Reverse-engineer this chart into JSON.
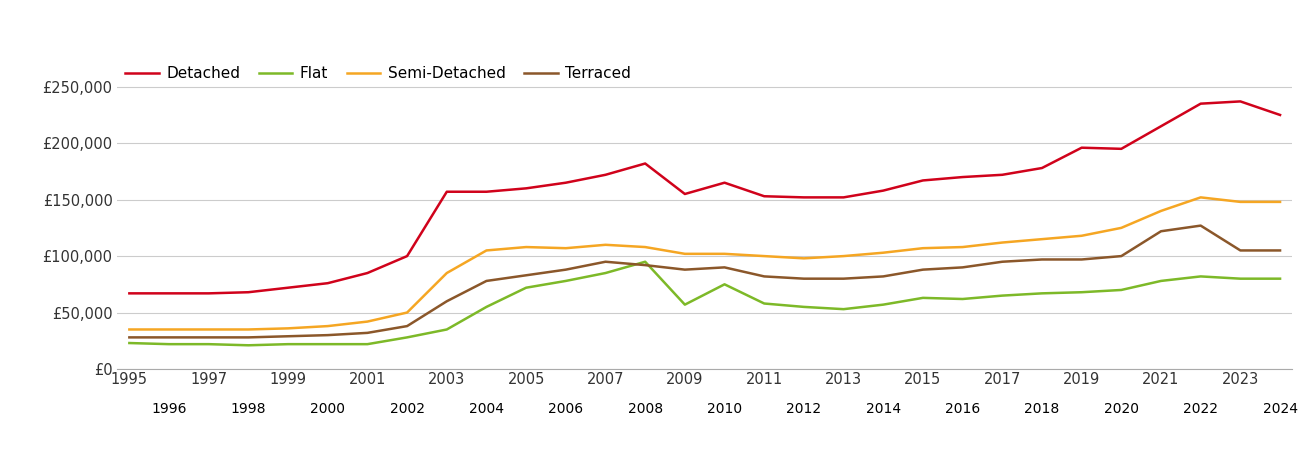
{
  "years": [
    1995,
    1996,
    1997,
    1998,
    1999,
    2000,
    2001,
    2002,
    2003,
    2004,
    2005,
    2006,
    2007,
    2008,
    2009,
    2010,
    2011,
    2012,
    2013,
    2014,
    2015,
    2016,
    2017,
    2018,
    2019,
    2020,
    2021,
    2022,
    2023,
    2024
  ],
  "detached": [
    67000,
    67000,
    67000,
    68000,
    72000,
    76000,
    85000,
    100000,
    157000,
    157000,
    160000,
    165000,
    172000,
    182000,
    155000,
    165000,
    153000,
    152000,
    152000,
    158000,
    167000,
    170000,
    172000,
    178000,
    196000,
    195000,
    215000,
    235000,
    237000,
    225000
  ],
  "flat": [
    23000,
    22000,
    22000,
    21000,
    22000,
    22000,
    22000,
    28000,
    35000,
    55000,
    72000,
    78000,
    85000,
    95000,
    57000,
    75000,
    58000,
    55000,
    53000,
    57000,
    63000,
    62000,
    65000,
    67000,
    68000,
    70000,
    78000,
    82000,
    80000,
    80000
  ],
  "semi_detached": [
    35000,
    35000,
    35000,
    35000,
    36000,
    38000,
    42000,
    50000,
    85000,
    105000,
    108000,
    107000,
    110000,
    108000,
    102000,
    102000,
    100000,
    98000,
    100000,
    103000,
    107000,
    108000,
    112000,
    115000,
    118000,
    125000,
    140000,
    152000,
    148000,
    148000
  ],
  "terraced": [
    28000,
    28000,
    28000,
    28000,
    29000,
    30000,
    32000,
    38000,
    60000,
    78000,
    83000,
    88000,
    95000,
    92000,
    88000,
    90000,
    82000,
    80000,
    80000,
    82000,
    88000,
    90000,
    95000,
    97000,
    97000,
    100000,
    122000,
    127000,
    105000,
    105000
  ],
  "colors": {
    "detached": "#d0021b",
    "flat": "#7db928",
    "semi_detached": "#f5a623",
    "terraced": "#8b572a"
  },
  "ylim": [
    0,
    275000
  ],
  "yticks": [
    0,
    50000,
    100000,
    150000,
    200000,
    250000
  ],
  "ytick_labels": [
    "£0",
    "£50,000",
    "£100,000",
    "£150,000",
    "£200,000",
    "£250,000"
  ],
  "background_color": "#ffffff",
  "grid_color": "#cccccc",
  "line_width": 1.8,
  "legend_labels": [
    "Detached",
    "Flat",
    "Semi-Detached",
    "Terraced"
  ]
}
